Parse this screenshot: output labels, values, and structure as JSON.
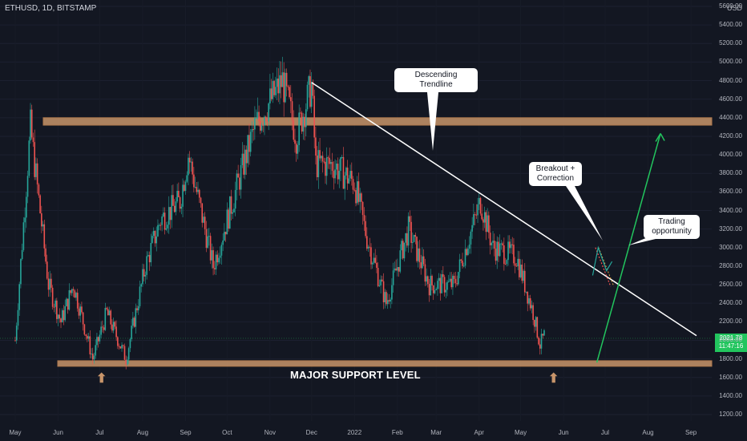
{
  "header": {
    "symbol": "ETHUSD, 1D, BITSTAMP",
    "currency": "USD"
  },
  "annotations": {
    "trendline_label": "Descending Trendline",
    "breakout_label": "Breakout +\nCorrection",
    "trading_label": "Trading\nopportunity",
    "support_label": "MAJOR SUPPORT LEVEL"
  },
  "price_tag": {
    "value": "2021.78",
    "countdown": "11:47:16"
  },
  "colors": {
    "up": "#26a69a",
    "down": "#ef5350",
    "zone": "#c8956a",
    "tag": "#22c55e"
  },
  "chart_data": {
    "type": "candlestick",
    "title": "",
    "yaxis": {
      "ticks": [
        "5600.00",
        "5400.00",
        "5200.00",
        "5000.00",
        "4800.00",
        "4600.00",
        "4400.00",
        "4200.00",
        "4000.00",
        "3800.00",
        "3600.00",
        "3400.00",
        "3200.00",
        "3000.00",
        "2800.00",
        "2600.00",
        "2400.00",
        "2200.00",
        "2000.00",
        "1800.00",
        "1600.00",
        "1400.00",
        "1200.00"
      ],
      "ylim": [
        1150,
        5650
      ]
    },
    "xaxis": {
      "ticks": [
        "May",
        "Jun",
        "Jul",
        "Aug",
        "Sep",
        "Oct",
        "Nov",
        "Dec",
        "2022",
        "Feb",
        "Mar",
        "Apr",
        "May",
        "Jun",
        "Jul",
        "Aug",
        "Sep"
      ]
    },
    "price_path": [
      [
        "2021-05-01",
        2000
      ],
      [
        "2021-05-12",
        4300
      ],
      [
        "2021-05-25",
        2600
      ],
      [
        "2021-06-03",
        2200
      ],
      [
        "2021-06-12",
        2600
      ],
      [
        "2021-06-26",
        1800
      ],
      [
        "2021-07-06",
        2300
      ],
      [
        "2021-07-20",
        1800
      ],
      [
        "2021-08-03",
        2800
      ],
      [
        "2021-08-14",
        3300
      ],
      [
        "2021-08-28",
        3500
      ],
      [
        "2021-09-03",
        4000
      ],
      [
        "2021-09-21",
        2800
      ],
      [
        "2021-10-05",
        3500
      ],
      [
        "2021-10-21",
        4300
      ],
      [
        "2021-11-10",
        4800
      ],
      [
        "2021-11-20",
        4200
      ],
      [
        "2021-12-01",
        4750
      ],
      [
        "2021-12-04",
        3900
      ],
      [
        "2021-12-16",
        3900
      ],
      [
        "2022-01-01",
        3700
      ],
      [
        "2022-01-10",
        3100
      ],
      [
        "2022-01-24",
        2400
      ],
      [
        "2022-02-09",
        3200
      ],
      [
        "2022-02-24",
        2600
      ],
      [
        "2022-03-14",
        2600
      ],
      [
        "2022-04-02",
        3500
      ],
      [
        "2022-04-11",
        3000
      ],
      [
        "2022-04-28",
        2900
      ],
      [
        "2022-05-10",
        2300
      ],
      [
        "2022-05-15",
        1950
      ],
      [
        "2022-05-18",
        2050
      ]
    ],
    "resistance_zone": [
      4320,
      4400
    ],
    "support_zone": [
      1720,
      1780
    ],
    "trendline": [
      [
        "2021-12-01",
        4780
      ],
      [
        "2022-09-05",
        2050
      ]
    ],
    "projection": [
      [
        "2022-06-25",
        1760
      ],
      [
        "2022-08-10",
        4230
      ]
    ],
    "breakout_correction": [
      [
        "2022-06-24",
        3000
      ],
      [
        "2022-07-05",
        2580
      ]
    ],
    "last_price": 2021.78
  }
}
